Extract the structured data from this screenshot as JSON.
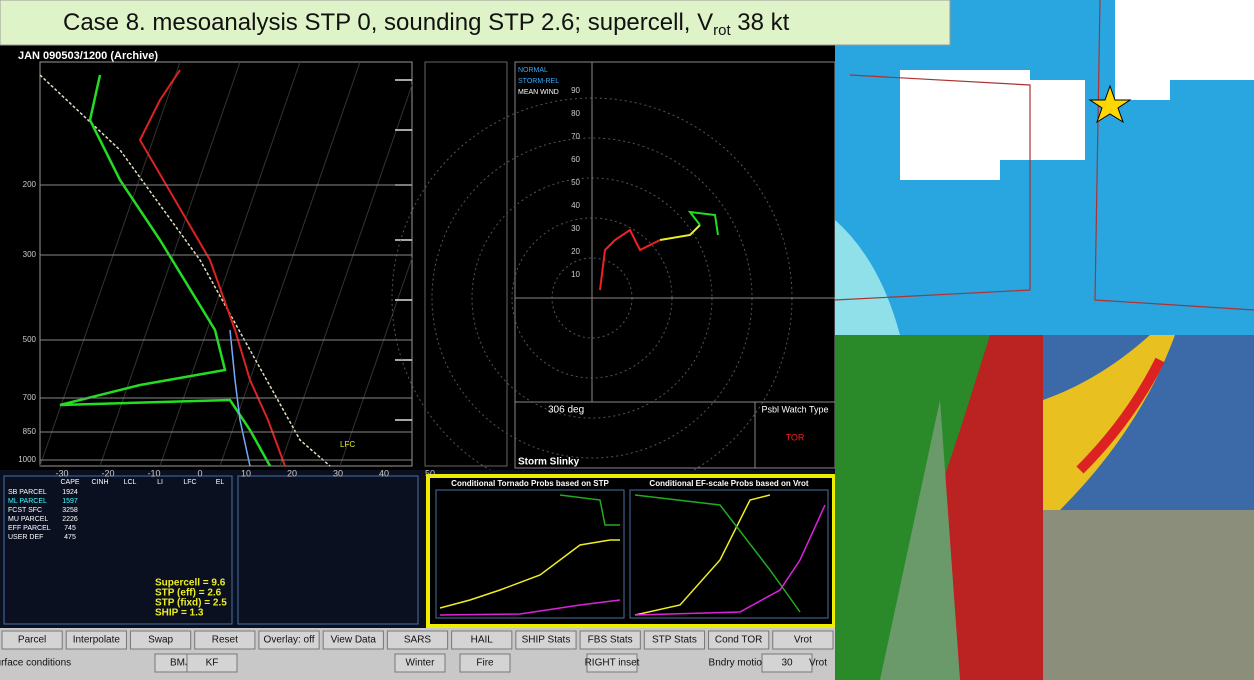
{
  "title": {
    "main": "Case 8.  mesoanalysis STP 0, sounding STP 2.6; supercell, V",
    "subscript": "rot",
    "end": " 38 kt"
  },
  "sounding": {
    "header": "JAN  090503/1200  (Archive)",
    "pressure_labels": [
      "200",
      "300",
      "500",
      "700",
      "850",
      "1000"
    ],
    "temp_labels": [
      "-30",
      "-20",
      "-10",
      "0",
      "10",
      "20",
      "30",
      "40",
      "50"
    ],
    "lfc_label": "LFC"
  },
  "hodograph": {
    "legend": [
      "NORMAL",
      "STORM-REL",
      "MEAN WIND"
    ],
    "ring_labels": [
      "10",
      "20",
      "30",
      "40",
      "50",
      "60",
      "70",
      "80",
      "90"
    ],
    "direction": "306 deg",
    "slinky": "Storm Slinky",
    "watch_title": "Psbl Watch Type",
    "watch_type": "TOR"
  },
  "parcels": {
    "headers": [
      "CAPE",
      "CINH",
      "LCL",
      "LI",
      "LFC",
      "EL"
    ],
    "rows": [
      [
        "SB PARCEL",
        "1924"
      ],
      [
        "ML PARCEL",
        "1597"
      ],
      [
        "FCST SFC",
        "3258"
      ],
      [
        "MU PARCEL",
        "2226"
      ],
      [
        "EFF PARCEL",
        "745"
      ],
      [
        "USER DEF",
        "475"
      ]
    ]
  },
  "indices": [
    "Supercell = 9.6",
    "STP (eff) = 2.6",
    "STP (fixd) = 2.5",
    "SHIP = 1.3"
  ],
  "prob_charts": [
    "Conditional Tornado Probs based on STP",
    "Conditional EF-scale Probs based on Vrot"
  ],
  "buttons_row1": [
    "Parcel",
    "Interpolate",
    "Swap",
    "Reset",
    "Overlay: off",
    "View Data",
    "SARS",
    "HAIL",
    "SHIP Stats",
    "FBS Stats",
    "STP Stats",
    "Cond TOR",
    "Vrot"
  ],
  "buttons_row2": {
    "surface": "Surface conditions",
    "bmj": "BMJ",
    "kf": "KF",
    "winter": "Winter",
    "fire": "Fire",
    "right_inset": "RIGHT inset",
    "boundary": "Bndry motion",
    "boundary_value": "30",
    "vrot": "Vrot"
  }
}
